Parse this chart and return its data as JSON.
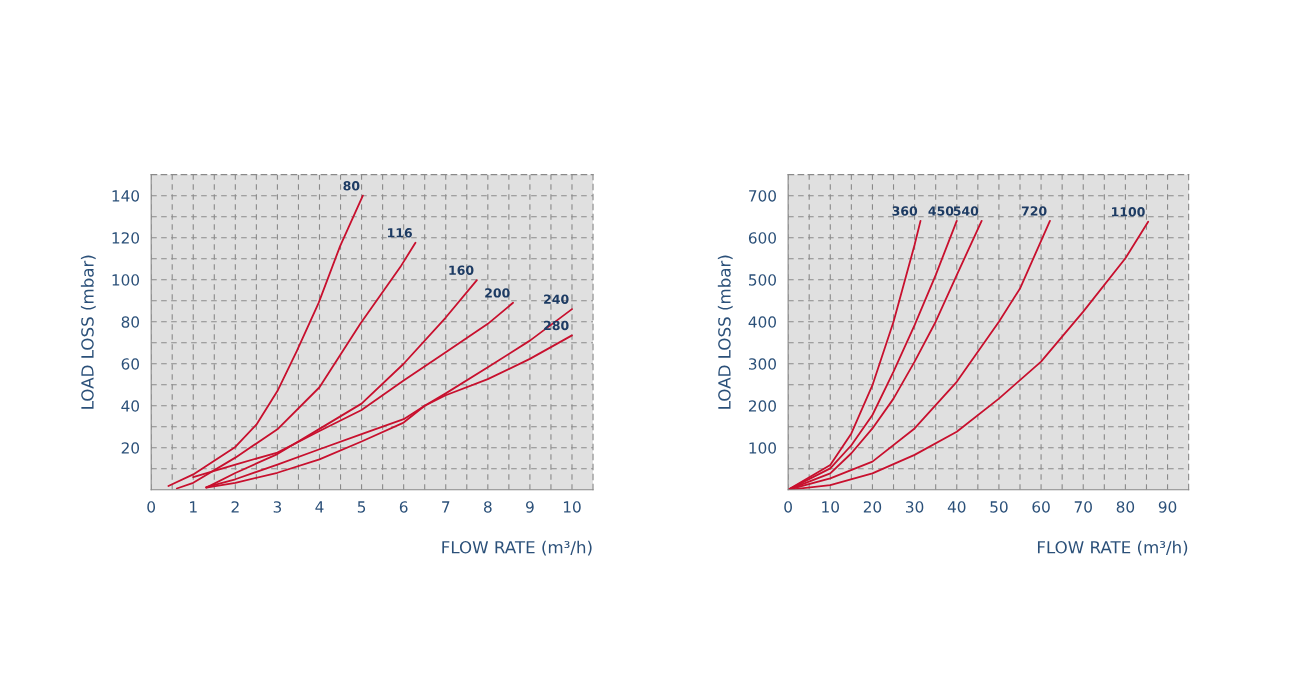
{
  "chart_data": [
    {
      "type": "line",
      "xlabel": "FLOW RATE (m³/h)",
      "ylabel": "LOAD LOSS (mbar)",
      "xlim": [
        0,
        10.5
      ],
      "ylim": [
        0,
        150
      ],
      "xticks": [
        0,
        {
          "value": 0.5,
          "label": null
        },
        1,
        {
          "value": 1.5,
          "label": null
        },
        2,
        {
          "value": 2.5,
          "label": null
        },
        3,
        {
          "value": 3.5,
          "label": null
        },
        4,
        {
          "value": 4.5,
          "label": null
        },
        5,
        {
          "value": 5.5,
          "label": null
        },
        6,
        {
          "value": 6.5,
          "label": null
        },
        7,
        {
          "value": 7.5,
          "label": null
        },
        8,
        {
          "value": 8.5,
          "label": null
        },
        9,
        {
          "value": 9.5,
          "label": null
        },
        10
      ],
      "yticks": [
        {
          "value": 10,
          "label": null
        },
        20,
        {
          "value": 30,
          "label": null
        },
        40,
        {
          "value": 50,
          "label": null
        },
        60,
        {
          "value": 70,
          "label": null
        },
        80,
        {
          "value": 90,
          "label": null
        },
        100,
        {
          "value": 110,
          "label": null
        },
        120,
        {
          "value": 130,
          "label": null
        },
        140
      ],
      "grid": true,
      "legend": false,
      "marker": "none",
      "line_style": "solid",
      "series": [
        {
          "name": "80",
          "color": "#c8102e",
          "x": [
            0.41,
            1.0,
            2.0,
            2.5,
            3.0,
            3.46,
            3.98,
            4.49,
            5.03
          ],
          "values": [
            1.8,
            7.3,
            20.4,
            31,
            47,
            66,
            89,
            116,
            140
          ]
        },
        {
          "name": "116",
          "color": "#c8102e",
          "x": [
            0.61,
            1.0,
            2.0,
            3.0,
            4.0,
            4.97,
            5.92,
            6.28
          ],
          "values": [
            0.6,
            3.3,
            15.3,
            28.8,
            48.8,
            79,
            106,
            117.6
          ]
        },
        {
          "name": "160",
          "color": "#c8102e",
          "x": [
            1.31,
            2.0,
            3.0,
            4.0,
            5.0,
            6.0,
            7.0,
            7.74
          ],
          "values": [
            1,
            8,
            17,
            29,
            41,
            60,
            82,
            99.8
          ]
        },
        {
          "name": "200",
          "color": "#c8102e",
          "x": [
            1.0,
            2.0,
            3.0,
            4.0,
            5.0,
            6.0,
            7.0,
            8.0,
            8.6
          ],
          "values": [
            6,
            12,
            17.7,
            28,
            38,
            52,
            65.5,
            79,
            89
          ]
        },
        {
          "name": "240",
          "color": "#c8102e",
          "x": [
            1.31,
            2.0,
            3.0,
            4.0,
            5.0,
            6.0,
            6.5,
            7.0,
            8.0,
            9.0,
            10.0
          ],
          "values": [
            1,
            3.3,
            8.1,
            14.5,
            23,
            32,
            40,
            45.9,
            58.3,
            71,
            86
          ]
        },
        {
          "name": "280",
          "color": "#c8102e",
          "x": [
            1.31,
            2.0,
            3.0,
            4.0,
            5.0,
            6.0,
            6.5,
            7.0,
            8.0,
            9.0,
            10.0
          ],
          "values": [
            1.3,
            5,
            12,
            19.3,
            26.5,
            33.6,
            40,
            45,
            52.7,
            62.3,
            73.5
          ]
        }
      ]
    },
    {
      "type": "line",
      "xlabel": "FLOW RATE (m³/h)",
      "ylabel": "LOAD LOSS (mbar)",
      "xlim": [
        0,
        95
      ],
      "ylim": [
        0,
        750
      ],
      "xticks": [
        0,
        {
          "value": 5,
          "label": null
        },
        10,
        {
          "value": 15,
          "label": null
        },
        20,
        {
          "value": 25,
          "label": null
        },
        30,
        {
          "value": 35,
          "label": null
        },
        40,
        {
          "value": 45,
          "label": null
        },
        50,
        {
          "value": 55,
          "label": null
        },
        60,
        {
          "value": 65,
          "label": null
        },
        70,
        {
          "value": 75,
          "label": null
        },
        80,
        {
          "value": 85,
          "label": null
        },
        90
      ],
      "yticks": [
        {
          "value": 50,
          "label": null
        },
        100,
        {
          "value": 150,
          "label": null
        },
        200,
        {
          "value": 250,
          "label": null
        },
        300,
        {
          "value": 350,
          "label": null
        },
        400,
        {
          "value": 450,
          "label": null
        },
        500,
        {
          "value": 550,
          "label": null
        },
        600,
        {
          "value": 650,
          "label": null
        },
        700
      ],
      "grid": true,
      "legend": false,
      "marker": "none",
      "line_style": "solid",
      "series": [
        {
          "name": "360",
          "color": "#c8102e",
          "x": [
            0,
            10,
            15,
            20,
            25,
            30,
            31.4
          ],
          "values": [
            0,
            59,
            134,
            249,
            400,
            583,
            640
          ]
        },
        {
          "name": "450",
          "color": "#c8102e",
          "x": [
            0,
            10,
            15,
            20,
            25,
            30,
            35,
            40
          ],
          "values": [
            0,
            51,
            106,
            178,
            281,
            392,
            511,
            640
          ]
        },
        {
          "name": "540",
          "color": "#c8102e",
          "x": [
            0,
            10,
            15,
            20,
            25,
            30,
            35,
            40,
            45.9
          ],
          "values": [
            0,
            39,
            87,
            146,
            217,
            305,
            400,
            511,
            640
          ]
        },
        {
          "name": "720",
          "color": "#c8102e",
          "x": [
            0,
            10,
            20,
            30,
            40,
            50,
            55,
            62.1
          ],
          "values": [
            0,
            27,
            67,
            146,
            257,
            400,
            479,
            640
          ]
        },
        {
          "name": "1100",
          "color": "#c8102e",
          "x": [
            0,
            10,
            20,
            30,
            40,
            50,
            60,
            70,
            80,
            85.4
          ],
          "values": [
            0,
            11,
            39,
            83,
            138,
            217,
            305,
            424,
            551,
            638
          ]
        }
      ]
    }
  ]
}
